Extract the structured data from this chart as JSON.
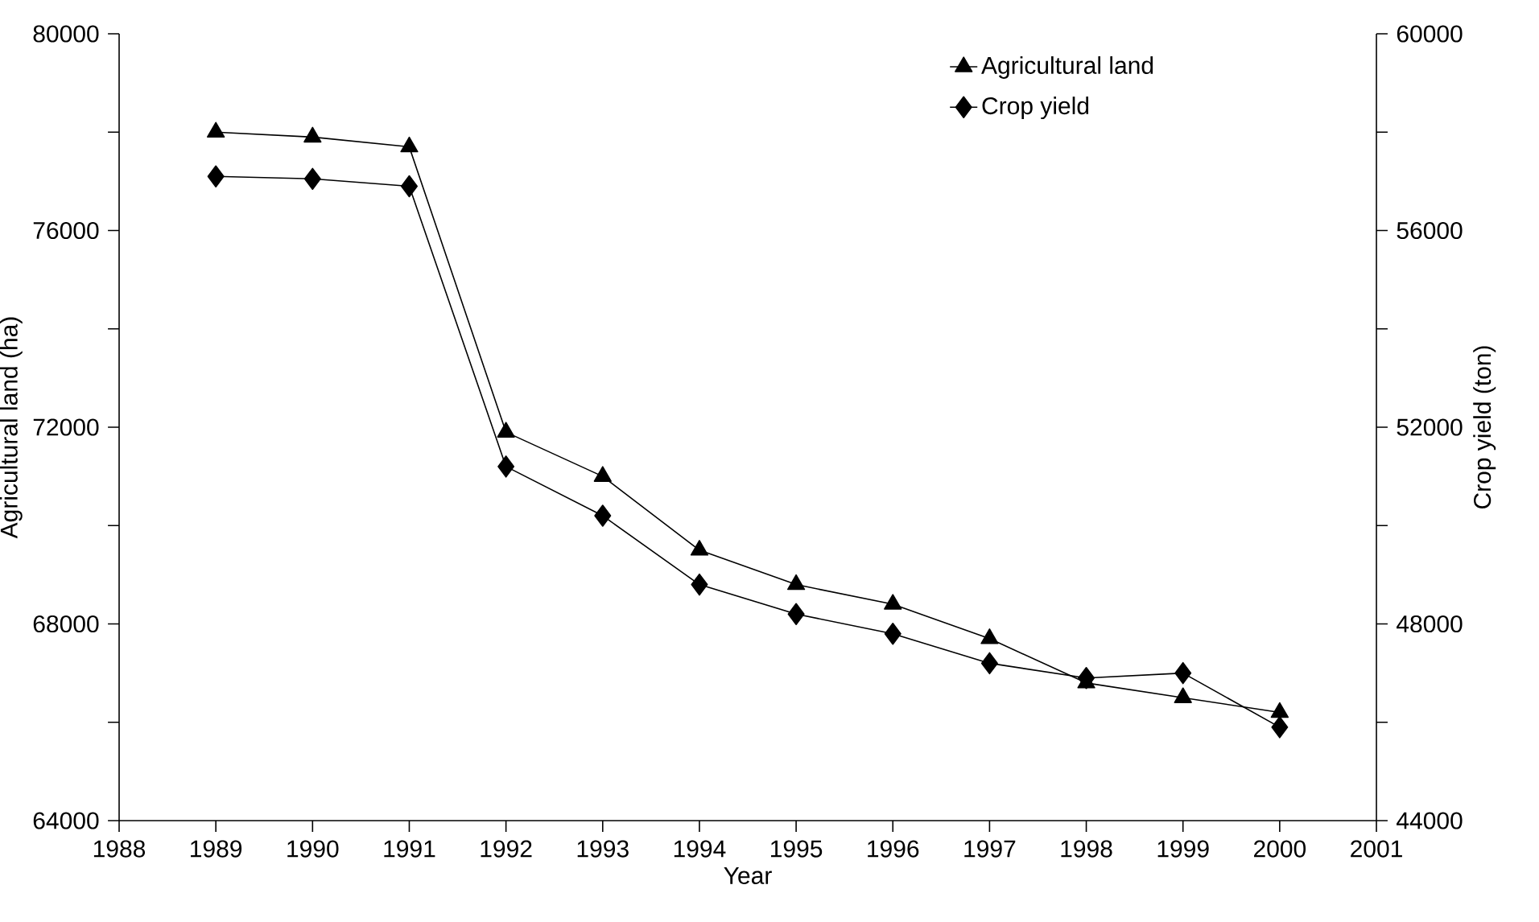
{
  "chart_data": {
    "type": "line",
    "xlabel": "Year",
    "ylabel": "Agricultural land (ha)",
    "y2label": "Crop yield (ton)",
    "x": [
      1989,
      1990,
      1991,
      1992,
      1993,
      1994,
      1995,
      1996,
      1997,
      1998,
      1999,
      2000
    ],
    "series": [
      {
        "name": "Agricultural land",
        "color": "#000000",
        "marker": "triangle",
        "values": [
          78000,
          77900,
          77700,
          71900,
          71000,
          69500,
          68800,
          68400,
          67700,
          66800,
          66500,
          66200
        ]
      },
      {
        "name": "Crop yield",
        "color": "#000000",
        "marker": "diamond",
        "axis": "y2",
        "values": [
          57100,
          57050,
          56900,
          51200,
          50200,
          48800,
          48200,
          47800,
          47200,
          46900,
          47000,
          45900
        ]
      }
    ],
    "xlim": [
      1988,
      2001
    ],
    "xticks": [
      1988,
      1989,
      1990,
      1991,
      1992,
      1993,
      1994,
      1995,
      1996,
      1997,
      1998,
      1999,
      2000,
      2001
    ],
    "ylim": [
      64000,
      80000
    ],
    "yticks": [
      64000,
      {
        "value": 66000,
        "label": null
      },
      68000,
      {
        "value": 70000,
        "label": null
      },
      72000,
      {
        "value": 74000,
        "label": null
      },
      76000,
      {
        "value": 78000,
        "label": null
      },
      80000
    ],
    "y2lim": [
      44000,
      60000
    ],
    "y2ticks": [
      44000,
      {
        "value": 46000,
        "label": null
      },
      48000,
      {
        "value": 50000,
        "label": null
      },
      52000,
      {
        "value": 54000,
        "label": null
      },
      56000,
      {
        "value": 58000,
        "label": null
      },
      60000
    ],
    "grid": false,
    "legend": "top right",
    "line_style": "solid"
  }
}
